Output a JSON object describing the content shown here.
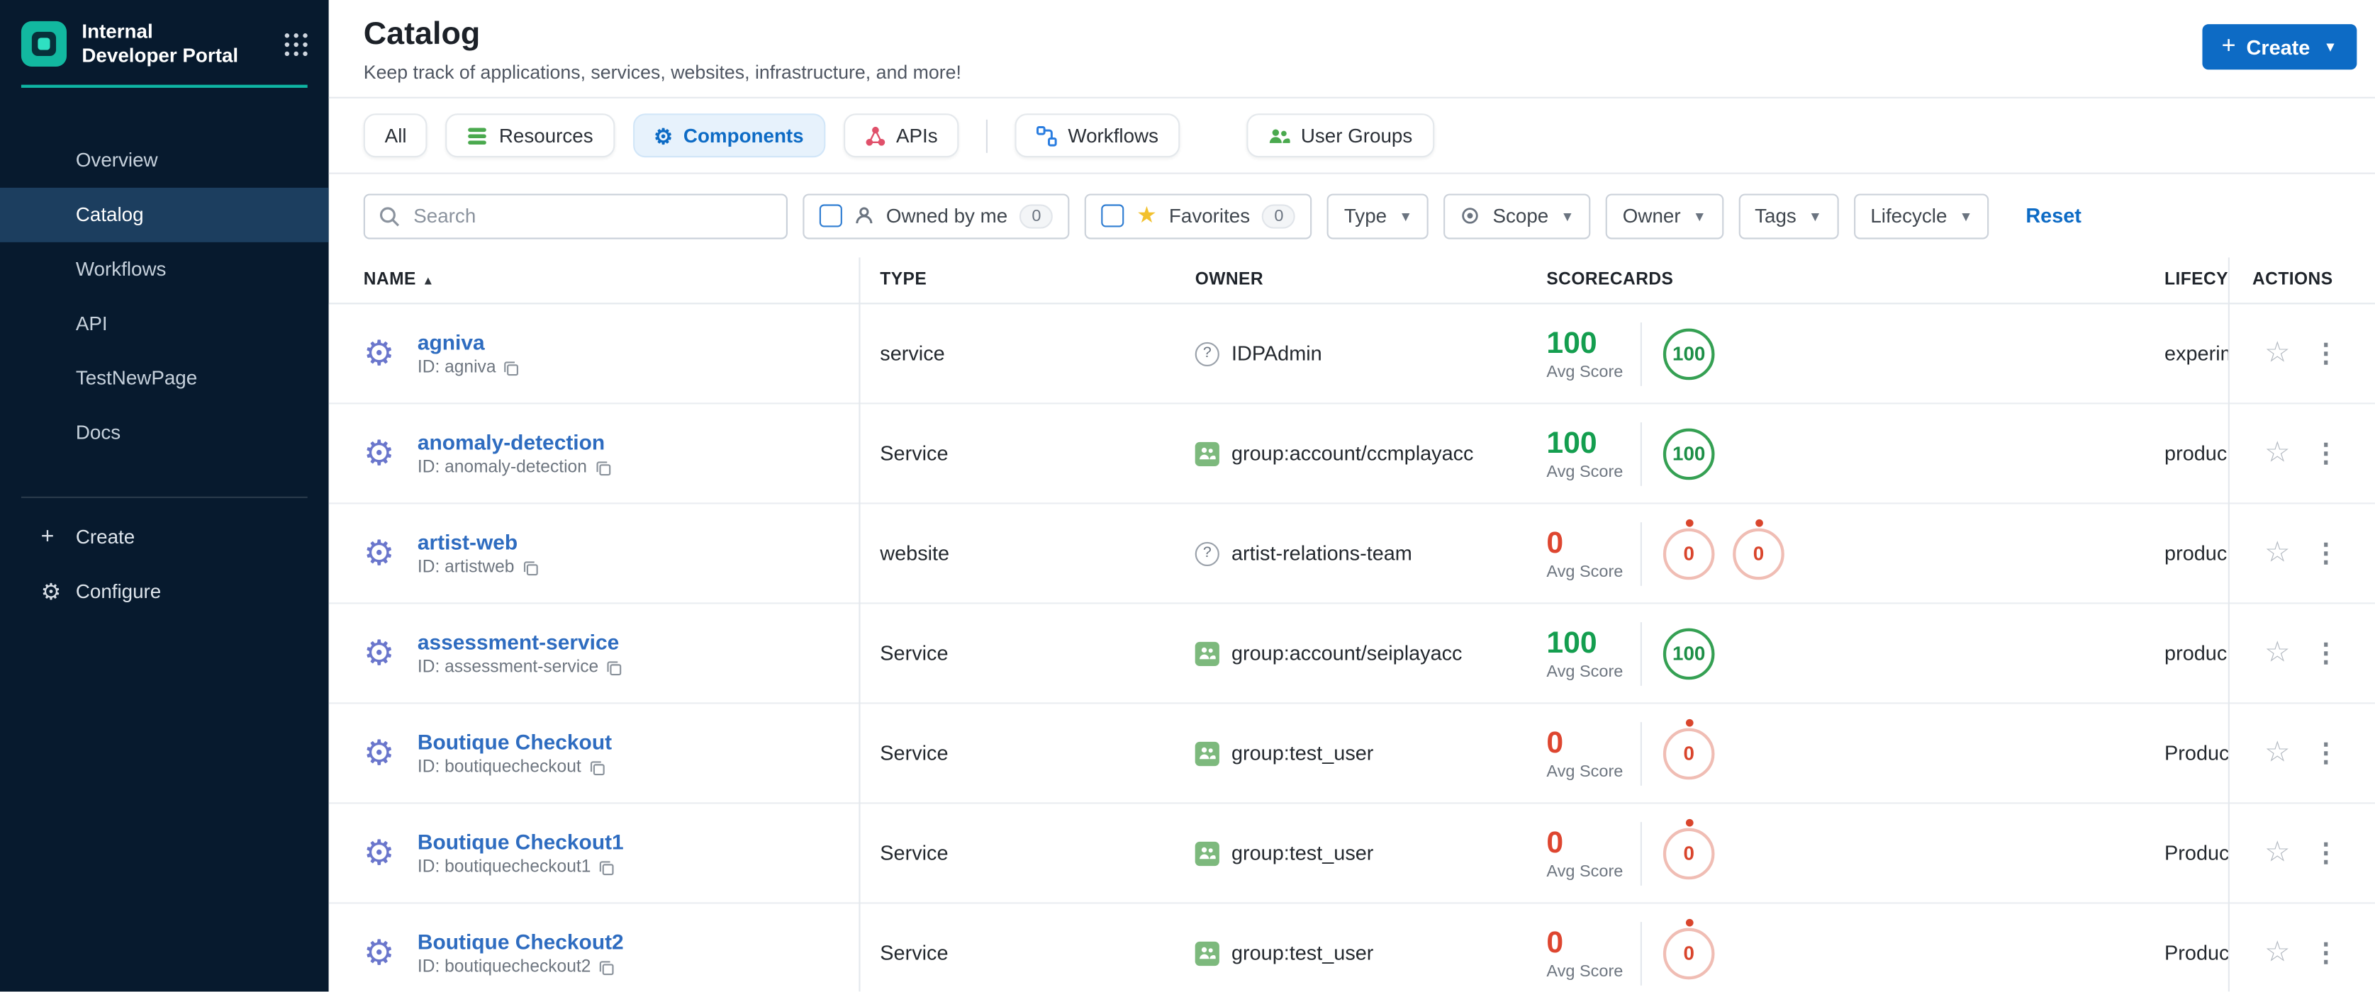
{
  "colors": {
    "primary_blue": "#0d6bc5",
    "link_blue": "#2e6cc0",
    "score_green": "#149e4f",
    "score_red": "#de4630",
    "favorite_star_yellow": "#f2c12e",
    "sidebar_bg": "#071a2e",
    "sidebar_active_bg": "#1c3e5f",
    "accent_teal": "#0fb5a3",
    "resources_icon_green": "#4aa94e",
    "apis_icon_red": "#e0506a",
    "workflows_icon_blue": "#2a7de0",
    "owner_group_green": "#7db97d"
  },
  "sidebar": {
    "logo_title": "Internal Developer Portal",
    "items": [
      {
        "label": "Overview",
        "active": false
      },
      {
        "label": "Catalog",
        "active": true
      },
      {
        "label": "Workflows",
        "active": false
      },
      {
        "label": "API",
        "active": false
      },
      {
        "label": "TestNewPage",
        "active": false
      },
      {
        "label": "Docs",
        "active": false
      }
    ],
    "create_label": "Create",
    "configure_label": "Configure"
  },
  "header": {
    "title": "Catalog",
    "subtitle": "Keep track of applications, services, websites, infrastructure, and more!",
    "create_button": "Create"
  },
  "tabs": [
    {
      "label": "All",
      "active": false
    },
    {
      "label": "Resources",
      "icon": "stack-icon",
      "active": false
    },
    {
      "label": "Components",
      "icon": "gear-icon",
      "active": true
    },
    {
      "label": "APIs",
      "icon": "api-icon",
      "active": false,
      "divider_after": true
    },
    {
      "label": "Workflows",
      "icon": "workflow-icon",
      "active": false
    },
    {
      "label": "User Groups",
      "icon": "users-icon",
      "active": false,
      "gap_before": true
    }
  ],
  "filters": {
    "search_placeholder": "Search",
    "owned_by_me": {
      "label": "Owned by me",
      "count": "0"
    },
    "favorites": {
      "label": "Favorites",
      "count": "0"
    },
    "dropdowns": [
      {
        "label": "Type"
      },
      {
        "label": "Scope",
        "icon": "scope-icon"
      },
      {
        "label": "Owner"
      },
      {
        "label": "Tags"
      },
      {
        "label": "Lifecycle"
      }
    ],
    "reset_label": "Reset"
  },
  "table": {
    "columns": {
      "name": "NAME",
      "type": "TYPE",
      "owner": "OWNER",
      "scorecards": "SCORECARDS",
      "lifecycle": "LIFECYC",
      "actions": "ACTIONS"
    },
    "sort": {
      "column": "name",
      "direction": "asc"
    },
    "avg_label": "Avg Score",
    "rows": [
      {
        "name": "agniva",
        "id": "ID: agniva",
        "type": "service",
        "owner": "IDPAdmin",
        "owner_icon": "question",
        "avg_score": "100",
        "score_color": "green",
        "badges": [
          "100"
        ],
        "lifecycle": "experim"
      },
      {
        "name": "anomaly-detection",
        "id": "ID: anomaly-detection",
        "type": "Service",
        "owner": "group:account/ccmplayacc",
        "owner_icon": "group",
        "avg_score": "100",
        "score_color": "green",
        "badges": [
          "100"
        ],
        "lifecycle": "produc"
      },
      {
        "name": "artist-web",
        "id": "ID: artistweb",
        "type": "website",
        "owner": "artist-relations-team",
        "owner_icon": "question",
        "avg_score": "0",
        "score_color": "red",
        "badges": [
          "0",
          "0"
        ],
        "lifecycle": "produc"
      },
      {
        "name": "assessment-service",
        "id": "ID: assessment-service",
        "type": "Service",
        "owner": "group:account/seiplayacc",
        "owner_icon": "group",
        "avg_score": "100",
        "score_color": "green",
        "badges": [
          "100"
        ],
        "lifecycle": "produc"
      },
      {
        "name": "Boutique Checkout",
        "id": "ID: boutiquecheckout",
        "type": "Service",
        "owner": "group:test_user",
        "owner_icon": "group",
        "avg_score": "0",
        "score_color": "red",
        "badges": [
          "0"
        ],
        "lifecycle": "Produc"
      },
      {
        "name": "Boutique Checkout1",
        "id": "ID: boutiquecheckout1",
        "type": "Service",
        "owner": "group:test_user",
        "owner_icon": "group",
        "avg_score": "0",
        "score_color": "red",
        "badges": [
          "0"
        ],
        "lifecycle": "Produc"
      },
      {
        "name": "Boutique Checkout2",
        "id": "ID: boutiquecheckout2",
        "type": "Service",
        "owner": "group:test_user",
        "owner_icon": "group",
        "avg_score": "0",
        "score_color": "red",
        "badges": [
          "0"
        ],
        "lifecycle": "Produc"
      }
    ]
  }
}
